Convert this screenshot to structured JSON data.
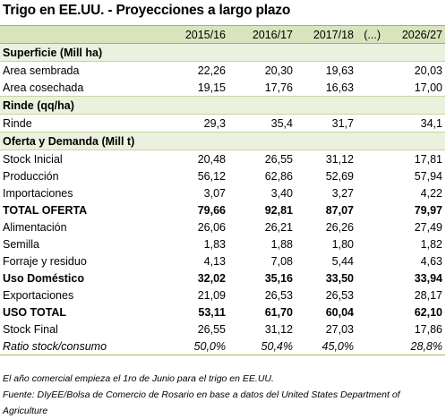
{
  "title": "Trigo en EE.UU. - Proyecciones a largo plazo",
  "table": {
    "header": [
      "2015/16",
      "2016/17",
      "2017/18",
      "(...)",
      "2026/27"
    ],
    "rows": [
      {
        "label": "Superficie (Mill ha)",
        "section": true
      },
      {
        "label": "Area sembrada",
        "values": [
          "22,26",
          "20,30",
          "19,63",
          "20,03"
        ]
      },
      {
        "label": "Area cosechada",
        "values": [
          "19,15",
          "17,76",
          "16,63",
          "17,00"
        ]
      },
      {
        "label": "Rinde (qq/ha)",
        "section": true
      },
      {
        "label": "Rinde",
        "values": [
          "29,3",
          "35,4",
          "31,7",
          "34,1"
        ]
      },
      {
        "label": "Oferta y Demanda (Mill t)",
        "section": true
      },
      {
        "label": "Stock Inicial",
        "values": [
          "20,48",
          "26,55",
          "31,12",
          "17,81"
        ]
      },
      {
        "label": "Producción",
        "values": [
          "56,12",
          "62,86",
          "52,69",
          "57,94"
        ]
      },
      {
        "label": "Importaciones",
        "values": [
          "3,07",
          "3,40",
          "3,27",
          "4,22"
        ]
      },
      {
        "label": "TOTAL OFERTA",
        "values": [
          "79,66",
          "92,81",
          "87,07",
          "79,97"
        ],
        "bold": true
      },
      {
        "label": "Alimentación",
        "values": [
          "26,06",
          "26,21",
          "26,26",
          "27,49"
        ]
      },
      {
        "label": "Semilla",
        "values": [
          "1,83",
          "1,88",
          "1,80",
          "1,82"
        ]
      },
      {
        "label": "Forraje y residuo",
        "values": [
          "4,13",
          "7,08",
          "5,44",
          "4,63"
        ]
      },
      {
        "label": "Uso Doméstico",
        "values": [
          "32,02",
          "35,16",
          "33,50",
          "33,94"
        ],
        "bold": true
      },
      {
        "label": "Exportaciones",
        "values": [
          "21,09",
          "26,53",
          "26,53",
          "28,17"
        ]
      },
      {
        "label": "USO TOTAL",
        "values": [
          "53,11",
          "61,70",
          "60,04",
          "62,10"
        ],
        "bold": true
      },
      {
        "label": "Stock Final",
        "values": [
          "26,55",
          "31,12",
          "27,03",
          "17,86"
        ]
      },
      {
        "label": "Ratio stock/consumo",
        "values": [
          "50,0%",
          "50,4%",
          "45,0%",
          "28,8%"
        ],
        "italic": true
      }
    ]
  },
  "notes": [
    "El año comercial empieza el 1ro de Junio para el trigo en EE.UU.",
    "Fuente: DIyEE/Bolsa de Comercio de Rosario en base a datos del United States Department of Agriculture"
  ]
}
